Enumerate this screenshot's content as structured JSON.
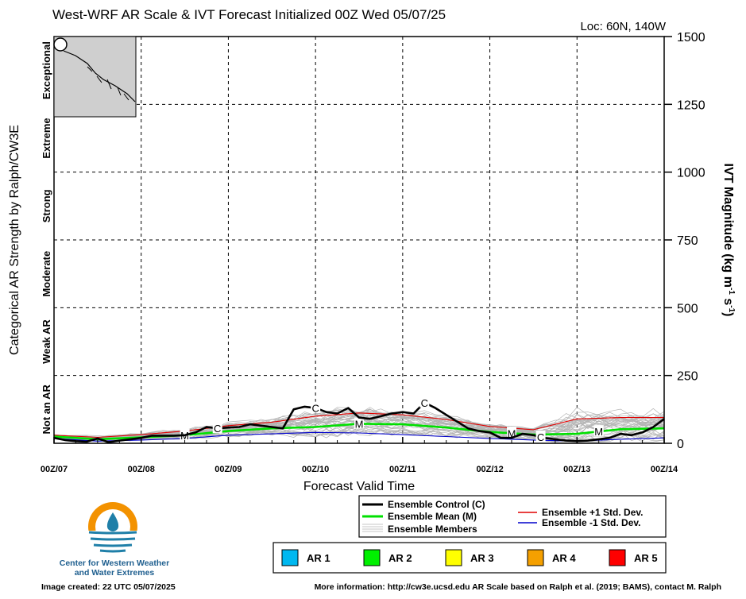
{
  "header": {
    "title": "West-WRF AR Scale & IVT Forecast Initialized 00Z Wed 05/07/25",
    "location": "Loc: 60N, 140W"
  },
  "axes": {
    "left_label": "Categorical AR Strength by Ralph/CW3E",
    "right_label_main": "IVT Magnitude (kg m",
    "right_label_sup1": "-1",
    "right_label_mid": " s",
    "right_label_sup2": "-1",
    "right_label_end": ")",
    "x_label": "Forecast Valid Time",
    "categories": [
      "Not an AR",
      "Weak AR",
      "Moderate",
      "Strong",
      "Extreme",
      "Exceptional"
    ]
  },
  "legend": {
    "control": "Ensemble Control (C)",
    "mean": "Ensemble Mean (M)",
    "members": "Ensemble Members",
    "plus": "Ensemble +1 Std. Dev.",
    "minus": "Ensemble -1 Std. Dev.",
    "colors": {
      "control": "#000000",
      "mean": "#00e000",
      "members": "#b4b4b4",
      "plus": "#e00000",
      "minus": "#0000cc"
    }
  },
  "ar_scale": [
    {
      "label": "AR 1",
      "color": "#00b8f0"
    },
    {
      "label": "AR 2",
      "color": "#00f000"
    },
    {
      "label": "AR 3",
      "color": "#ffff00"
    },
    {
      "label": "AR 4",
      "color": "#f5a000"
    },
    {
      "label": "AR 5",
      "color": "#ff0000"
    }
  ],
  "logo": {
    "line1": "Center for Western Weather",
    "line2": "and Water Extremes"
  },
  "footer": {
    "created": "Image created: 22 UTC 05/07/2025",
    "info": "More information: http://cw3e.ucsd.edu  AR Scale based on Ralph et al. (2019; BAMS), contact M. Ralph"
  },
  "chart_data": {
    "type": "line",
    "x_unit": "forecast hours from 00Z/07",
    "xlim": [
      0,
      168
    ],
    "ylim": [
      0,
      1500
    ],
    "x_ticks": [
      {
        "x": 0,
        "label": "00Z/07"
      },
      {
        "x": 24,
        "label": "00Z/08"
      },
      {
        "x": 48,
        "label": "00Z/09"
      },
      {
        "x": 72,
        "label": "00Z/10"
      },
      {
        "x": 96,
        "label": "00Z/11"
      },
      {
        "x": 120,
        "label": "00Z/12"
      },
      {
        "x": 144,
        "label": "00Z/13"
      },
      {
        "x": 168,
        "label": "00Z/14"
      }
    ],
    "y_ticks": [
      0,
      250,
      500,
      750,
      1000,
      1250,
      1500
    ],
    "grid": true,
    "series": [
      {
        "name": "Ensemble Control (C)",
        "marker": "C",
        "marker_x": [
          45,
          72,
          102,
          134
        ],
        "x": [
          0,
          3,
          6,
          9,
          12,
          15,
          18,
          21,
          24,
          27,
          30,
          33,
          36,
          39,
          42,
          45,
          48,
          51,
          54,
          57,
          60,
          63,
          66,
          69,
          72,
          75,
          78,
          81,
          84,
          87,
          90,
          93,
          96,
          99,
          102,
          105,
          108,
          111,
          114,
          117,
          120,
          123,
          126,
          129,
          132,
          135,
          138,
          141,
          144,
          147,
          150,
          153,
          156,
          159,
          162,
          165,
          168
        ],
        "values": [
          20,
          12,
          8,
          6,
          18,
          4,
          10,
          15,
          20,
          28,
          28,
          28,
          30,
          40,
          60,
          55,
          58,
          60,
          70,
          65,
          60,
          55,
          125,
          135,
          130,
          115,
          110,
          130,
          95,
          90,
          100,
          110,
          115,
          110,
          150,
          130,
          105,
          80,
          55,
          45,
          40,
          20,
          20,
          35,
          30,
          20,
          15,
          10,
          8,
          10,
          15,
          20,
          35,
          30,
          40,
          60,
          90
        ]
      },
      {
        "name": "Ensemble Mean (M)",
        "marker": "M",
        "marker_x": [
          36,
          84,
          126,
          150
        ],
        "x": [
          0,
          12,
          24,
          36,
          48,
          60,
          72,
          84,
          96,
          108,
          120,
          132,
          144,
          156,
          168
        ],
        "values": [
          25,
          15,
          22,
          30,
          45,
          55,
          60,
          72,
          70,
          58,
          42,
          32,
          35,
          52,
          55
        ]
      },
      {
        "name": "Ensemble +1 Std. Dev.",
        "x": [
          0,
          12,
          24,
          36,
          48,
          60,
          72,
          84,
          96,
          108,
          120,
          132,
          144,
          156,
          168
        ],
        "values": [
          30,
          22,
          32,
          45,
          65,
          78,
          100,
          112,
          105,
          88,
          62,
          50,
          90,
          95,
          95
        ]
      },
      {
        "name": "Ensemble -1 Std. Dev.",
        "x": [
          0,
          12,
          24,
          36,
          48,
          60,
          72,
          84,
          96,
          108,
          120,
          132,
          144,
          156,
          168
        ],
        "values": [
          18,
          8,
          12,
          18,
          30,
          35,
          40,
          38,
          32,
          25,
          18,
          12,
          8,
          15,
          20
        ]
      }
    ],
    "members_envelope": {
      "low": 5,
      "high": 200
    }
  }
}
